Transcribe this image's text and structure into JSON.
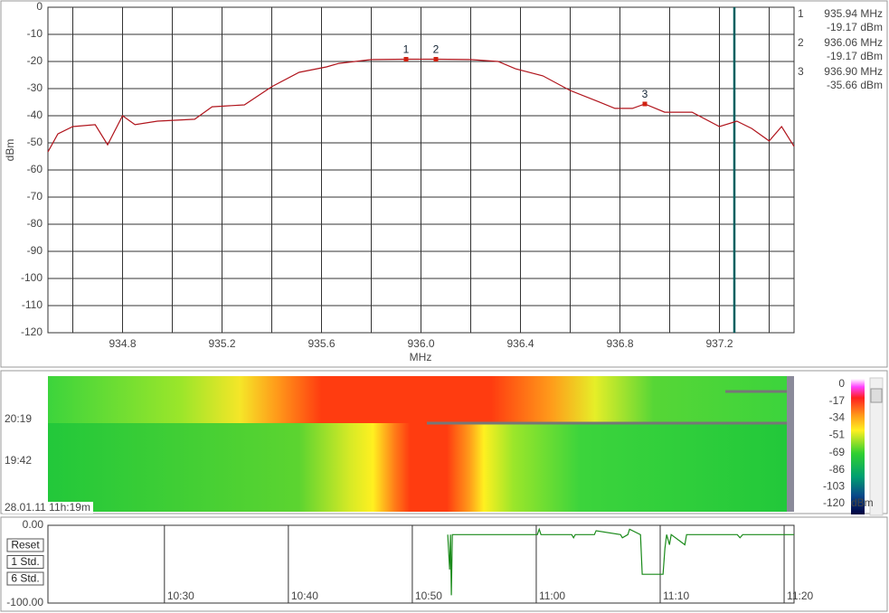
{
  "spectrum": {
    "type": "line",
    "y_label": "dBm",
    "x_label": "MHz",
    "xlim": [
      934.5,
      937.5
    ],
    "ylim": [
      -120,
      0
    ],
    "xticks": [
      934.8,
      935.2,
      935.6,
      {
        "value": 936,
        "label": "936.0"
      },
      936.4,
      936.8,
      937.2
    ],
    "x_grid": [
      934.6,
      935.0,
      935.4,
      935.8,
      936.2,
      936.6,
      937.0,
      937.4
    ],
    "yticks": [
      0,
      -10,
      -20,
      -30,
      -40,
      -50,
      -60,
      -70,
      -80,
      -90,
      -100,
      -110,
      -120
    ],
    "color": "#b0141c",
    "x": [
      934.5,
      934.54,
      934.6,
      934.69,
      934.74,
      934.8,
      934.85,
      934.94,
      935.09,
      935.16,
      935.29,
      935.4,
      935.51,
      935.62,
      935.67,
      935.8,
      935.94,
      936.06,
      936.2,
      936.31,
      936.38,
      936.49,
      936.6,
      936.71,
      936.78,
      936.85,
      936.9,
      936.98,
      937.09,
      937.2,
      937.27,
      937.33,
      937.4,
      937.45,
      937.5
    ],
    "values": [
      -53.3,
      -46.7,
      -44,
      -43.3,
      -50.7,
      -40,
      -43.3,
      -42,
      -41.3,
      -36.7,
      -36,
      -29.3,
      -24,
      -22,
      -20.7,
      -19.3,
      -19.17,
      -19.17,
      -19.3,
      -20,
      -22.7,
      -25.3,
      -30.7,
      -34.7,
      -37.3,
      -37.3,
      -35.66,
      -38.7,
      -38.7,
      -44,
      -42,
      -44.7,
      -49.3,
      -44,
      -51.3
    ],
    "cursor_x": 937.26,
    "cursor_color": "#006060",
    "markers": [
      {
        "label": "1",
        "x": 935.94,
        "y": -19.17,
        "x_label": "935.94 MHz",
        "y_label": "-19.17 dBm"
      },
      {
        "label": "2",
        "x": 936.06,
        "y": -19.17,
        "x_label": "936.06 MHz",
        "y_label": "-19.17 dBm"
      },
      {
        "label": "3",
        "x": 936.9,
        "y": -35.66,
        "x_label": "936.90 MHz",
        "y_label": "-35.66 dBm"
      }
    ]
  },
  "waterfall": {
    "time_labels": [
      "20:19",
      "19:42"
    ],
    "timestamp": "28.01.11 11h:19m",
    "scale_ticks": [
      0,
      -17,
      -34,
      -51,
      -69,
      -86,
      -103,
      -120
    ],
    "scale_unit": "dBm"
  },
  "history": {
    "type": "line",
    "color": "#1a8a1a",
    "ylim": [
      -100,
      0
    ],
    "yticks": [
      {
        "value": 0,
        "label": "0.00"
      },
      {
        "value": -100,
        "label": "-100.00"
      }
    ],
    "xlim": [
      620.6,
      680.8
    ],
    "xticks": [
      {
        "value": 630,
        "label": "10:30"
      },
      {
        "value": 640,
        "label": "10:40"
      },
      {
        "value": 650,
        "label": "10:50"
      },
      {
        "value": 660,
        "label": "11:00"
      },
      {
        "value": 670,
        "label": "11:10"
      },
      {
        "value": 680,
        "label": "11:20"
      }
    ],
    "x": [
      652.86,
      653.01,
      653.08,
      653.15,
      653.23,
      660.09,
      660.24,
      660.38,
      662.86,
      663.01,
      663.15,
      664.69,
      664.83,
      666.8,
      666.95,
      667.39,
      667.53,
      668.41,
      668.55,
      670.23,
      670.38,
      670.52,
      670.75,
      670.89,
      671.99,
      672.13,
      676.22,
      676.44,
      676.66,
      680.8
    ],
    "values": [
      -12,
      -57,
      -12,
      -90,
      -12,
      -12,
      -5,
      -12,
      -12,
      -16,
      -12,
      -12,
      -7,
      -12,
      -16,
      -12,
      -5,
      -12,
      -63,
      -63,
      -30,
      -12,
      -25,
      -12,
      -25,
      -12,
      -12,
      -16,
      -12,
      -12
    ],
    "buttons": [
      "Reset",
      "1 Std.",
      "6 Std."
    ]
  }
}
